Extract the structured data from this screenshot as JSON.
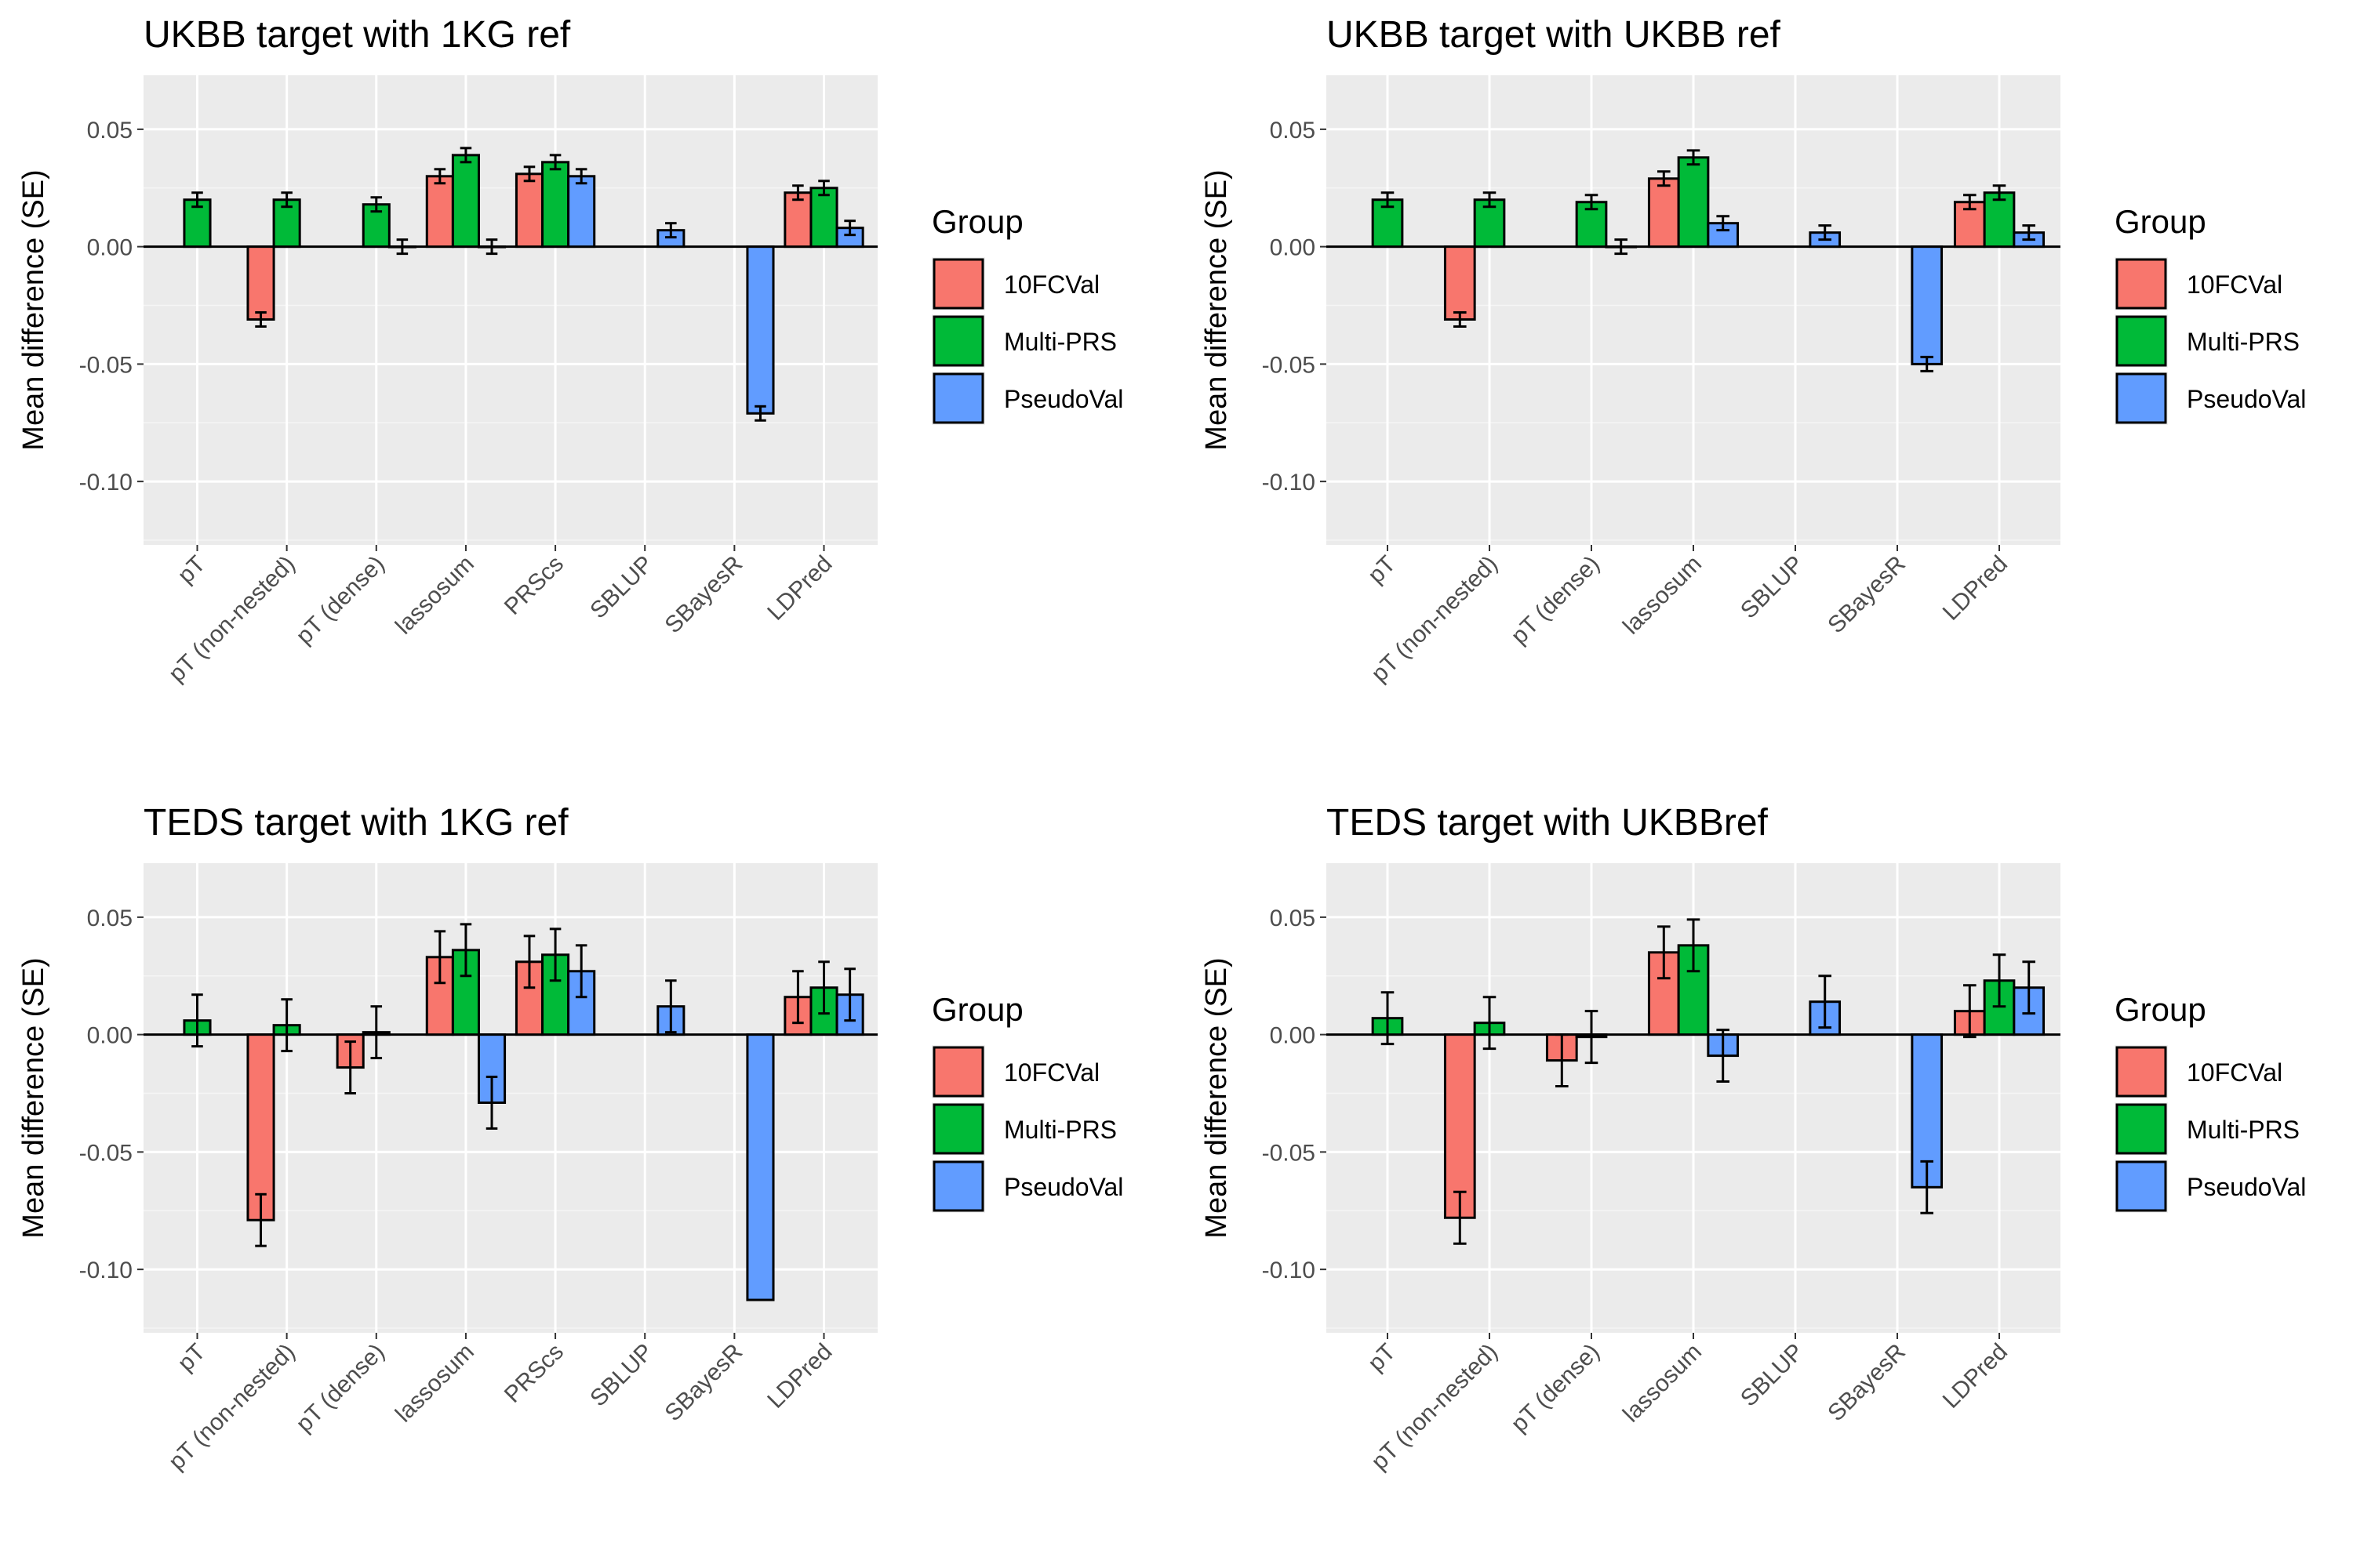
{
  "legend": {
    "title": "Group",
    "entries": [
      {
        "name": "10FCVal",
        "color": "#F8766D"
      },
      {
        "name": "Multi-PRS",
        "color": "#00BA38"
      },
      {
        "name": "PseudoVal",
        "color": "#619CFF"
      }
    ]
  },
  "chart_data": [
    {
      "type": "bar",
      "title": "UKBB target with 1KG ref",
      "ylabel": "Mean difference (SE)",
      "ylim": [
        -0.127,
        0.073
      ],
      "yticks": [
        "0.05",
        "0.00",
        "-0.05",
        "-0.10"
      ],
      "categories": [
        "pT",
        "pT (non-nested)",
        "pT (dense)",
        "lassosum",
        "PRScs",
        "SBLUP",
        "SBayesR",
        "LDPred"
      ],
      "series": [
        {
          "name": "10FCVal",
          "values": [
            null,
            -0.031,
            null,
            0.03,
            0.031,
            null,
            null,
            0.023
          ],
          "se": [
            null,
            0.003,
            null,
            0.003,
            0.003,
            null,
            null,
            0.003
          ]
        },
        {
          "name": "Multi-PRS",
          "values": [
            0.02,
            0.02,
            0.018,
            0.039,
            0.036,
            null,
            null,
            0.025
          ],
          "se": [
            0.003,
            0.003,
            0.003,
            0.003,
            0.003,
            null,
            null,
            0.003
          ]
        },
        {
          "name": "PseudoVal",
          "values": [
            null,
            null,
            0.0,
            0.0,
            0.03,
            0.007,
            -0.071,
            0.008
          ],
          "se": [
            null,
            null,
            0.003,
            0.003,
            0.003,
            0.003,
            0.003,
            0.003
          ]
        }
      ]
    },
    {
      "type": "bar",
      "title": "UKBB target with UKBB ref",
      "ylabel": "Mean difference (SE)",
      "ylim": [
        -0.127,
        0.073
      ],
      "yticks": [
        "0.05",
        "0.00",
        "-0.05",
        "-0.10"
      ],
      "categories": [
        "pT",
        "pT (non-nested)",
        "pT (dense)",
        "lassosum",
        "SBLUP",
        "SBayesR",
        "LDPred"
      ],
      "series": [
        {
          "name": "10FCVal",
          "values": [
            null,
            -0.031,
            null,
            0.029,
            null,
            null,
            0.019
          ],
          "se": [
            null,
            0.003,
            null,
            0.003,
            null,
            null,
            0.003
          ]
        },
        {
          "name": "Multi-PRS",
          "values": [
            0.02,
            0.02,
            0.019,
            0.038,
            null,
            null,
            0.023
          ],
          "se": [
            0.003,
            0.003,
            0.003,
            0.003,
            null,
            null,
            0.003
          ]
        },
        {
          "name": "PseudoVal",
          "values": [
            null,
            null,
            0.0,
            0.01,
            0.006,
            -0.05,
            0.006
          ],
          "se": [
            null,
            null,
            0.003,
            0.003,
            0.003,
            0.003,
            0.003
          ]
        }
      ]
    },
    {
      "type": "bar",
      "title": "TEDS target with 1KG ref",
      "ylabel": "Mean difference (SE)",
      "ylim": [
        -0.127,
        0.073
      ],
      "yticks": [
        "0.05",
        "0.00",
        "-0.05",
        "-0.10"
      ],
      "categories": [
        "pT",
        "pT (non-nested)",
        "pT (dense)",
        "lassosum",
        "PRScs",
        "SBLUP",
        "SBayesR",
        "LDPred"
      ],
      "series": [
        {
          "name": "10FCVal",
          "values": [
            null,
            -0.079,
            -0.014,
            0.033,
            0.031,
            null,
            null,
            0.016
          ],
          "se": [
            null,
            0.011,
            0.011,
            0.011,
            0.011,
            null,
            null,
            0.011
          ]
        },
        {
          "name": "Multi-PRS",
          "values": [
            0.006,
            0.004,
            0.001,
            0.036,
            0.034,
            null,
            null,
            0.02
          ],
          "se": [
            0.011,
            0.011,
            0.011,
            0.011,
            0.011,
            null,
            null,
            0.011
          ]
        },
        {
          "name": "PseudoVal",
          "values": [
            null,
            null,
            null,
            -0.029,
            0.027,
            0.012,
            -0.113,
            0.017
          ],
          "se": [
            null,
            null,
            null,
            0.011,
            0.011,
            0.011,
            null,
            0.011
          ]
        }
      ]
    },
    {
      "type": "bar",
      "title": "TEDS target with UKBBref",
      "ylabel": "Mean difference (SE)",
      "ylim": [
        -0.127,
        0.073
      ],
      "yticks": [
        "0.05",
        "0.00",
        "-0.05",
        "-0.10"
      ],
      "categories": [
        "pT",
        "pT (non-nested)",
        "pT (dense)",
        "lassosum",
        "SBLUP",
        "SBayesR",
        "LDPred"
      ],
      "series": [
        {
          "name": "10FCVal",
          "values": [
            null,
            -0.078,
            -0.011,
            0.035,
            null,
            null,
            0.01
          ],
          "se": [
            null,
            0.011,
            0.011,
            0.011,
            null,
            null,
            0.011
          ]
        },
        {
          "name": "Multi-PRS",
          "values": [
            0.007,
            0.005,
            -0.001,
            0.038,
            null,
            null,
            0.023
          ],
          "se": [
            0.011,
            0.011,
            0.011,
            0.011,
            null,
            null,
            0.011
          ]
        },
        {
          "name": "PseudoVal",
          "values": [
            null,
            null,
            null,
            -0.009,
            0.014,
            -0.065,
            0.02
          ],
          "se": [
            null,
            null,
            null,
            0.011,
            0.011,
            0.011,
            0.011
          ]
        }
      ]
    }
  ]
}
